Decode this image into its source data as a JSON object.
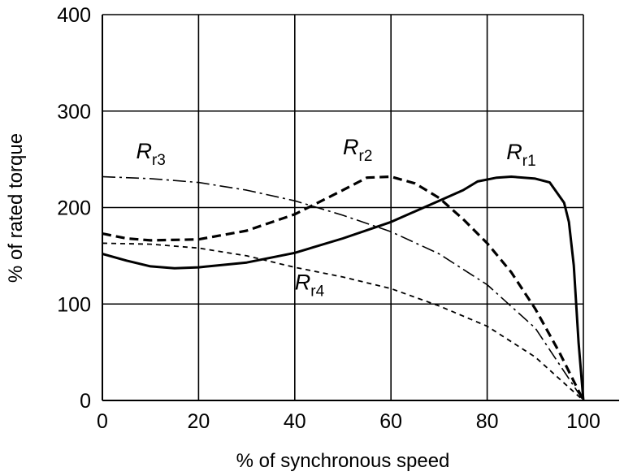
{
  "chart_data": {
    "type": "line",
    "title": "",
    "xlabel": "% of synchronous speed",
    "ylabel": "% of rated torque",
    "xlim": [
      0,
      100
    ],
    "ylim": [
      0,
      400
    ],
    "xticks": [
      "0",
      "20",
      "40",
      "60",
      "80",
      "100"
    ],
    "yticks": [
      "0",
      "100",
      "200",
      "300",
      "400"
    ],
    "grid": true,
    "series": [
      {
        "name": "Rr1",
        "label_main": "R",
        "label_sub": "r1",
        "style": "solid",
        "label_at": [
          84,
          250
        ],
        "x": [
          0,
          5,
          10,
          15,
          20,
          30,
          40,
          50,
          60,
          70,
          75,
          78,
          82,
          85,
          90,
          93,
          96,
          97,
          98,
          99,
          100
        ],
        "y": [
          152,
          145,
          139,
          137,
          138,
          143,
          153,
          168,
          185,
          207,
          218,
          227,
          231,
          232,
          230,
          226,
          205,
          185,
          140,
          60,
          0
        ]
      },
      {
        "name": "Rr2",
        "label_main": "R",
        "label_sub": "r2",
        "style": "dashed",
        "label_at": [
          50,
          255
        ],
        "x": [
          0,
          5,
          10,
          20,
          30,
          40,
          50,
          55,
          60,
          65,
          70,
          75,
          80,
          85,
          90,
          95,
          100
        ],
        "y": [
          173,
          168,
          166,
          167,
          176,
          193,
          218,
          231,
          232,
          225,
          210,
          188,
          163,
          133,
          95,
          50,
          0
        ]
      },
      {
        "name": "Rr3",
        "label_main": "R",
        "label_sub": "r3",
        "style": "dash-dot",
        "label_at": [
          7,
          251
        ],
        "x": [
          0,
          10,
          20,
          30,
          40,
          50,
          60,
          70,
          80,
          90,
          100
        ],
        "y": [
          232,
          230,
          226,
          218,
          207,
          192,
          175,
          152,
          120,
          75,
          0
        ]
      },
      {
        "name": "Rr4",
        "label_main": "R",
        "label_sub": "r4",
        "style": "short-dash",
        "label_at": [
          40,
          115
        ],
        "x": [
          0,
          10,
          20,
          30,
          40,
          50,
          60,
          70,
          80,
          90,
          100
        ],
        "y": [
          163,
          162,
          158,
          150,
          138,
          128,
          116,
          98,
          77,
          45,
          0
        ]
      }
    ]
  }
}
